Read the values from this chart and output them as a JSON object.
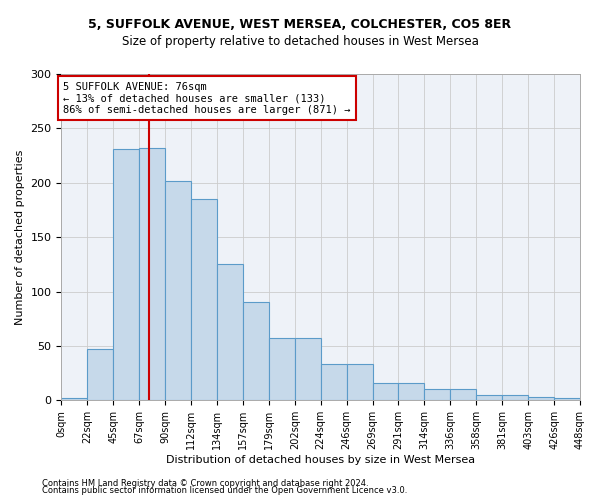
{
  "title1": "5, SUFFOLK AVENUE, WEST MERSEA, COLCHESTER, CO5 8ER",
  "title2": "Size of property relative to detached houses in West Mersea",
  "xlabel": "Distribution of detached houses by size in West Mersea",
  "ylabel": "Number of detached properties",
  "footer1": "Contains HM Land Registry data © Crown copyright and database right 2024.",
  "footer2": "Contains public sector information licensed under the Open Government Licence v3.0.",
  "annotation_line1": "5 SUFFOLK AVENUE: 76sqm",
  "annotation_line2": "← 13% of detached houses are smaller (133)",
  "annotation_line3": "86% of semi-detached houses are larger (871) →",
  "property_size": 76,
  "bin_width": 22.5,
  "bar_heights": [
    2,
    47,
    231,
    232,
    202,
    185,
    125,
    90,
    57,
    57,
    33,
    33,
    16,
    16,
    10,
    10,
    5,
    5,
    3,
    2
  ],
  "bar_facecolor": "#c6d9ea",
  "bar_edgecolor": "#5b9bc9",
  "vline_color": "#cc0000",
  "grid_color": "#cccccc",
  "background_color": "#eef2f8",
  "box_edgecolor": "#cc0000",
  "ylim": [
    0,
    300
  ],
  "xlim": [
    0,
    450
  ],
  "tick_positions": [
    0,
    22.5,
    45,
    67.5,
    90,
    112.5,
    135,
    157.5,
    180,
    202.5,
    225,
    247.5,
    270,
    292.5,
    315,
    337.5,
    360,
    382.5,
    405,
    427.5,
    450
  ],
  "tick_labels": [
    "0sqm",
    "22sqm",
    "45sqm",
    "67sqm",
    "90sqm",
    "112sqm",
    "134sqm",
    "157sqm",
    "179sqm",
    "202sqm",
    "224sqm",
    "246sqm",
    "269sqm",
    "291sqm",
    "314sqm",
    "336sqm",
    "358sqm",
    "381sqm",
    "403sqm",
    "426sqm",
    "448sqm"
  ],
  "ytick_positions": [
    0,
    50,
    100,
    150,
    200,
    250,
    300
  ],
  "ytick_labels": [
    "0",
    "50",
    "100",
    "150",
    "200",
    "250",
    "300"
  ],
  "title1_fontsize": 9,
  "title2_fontsize": 8.5,
  "xlabel_fontsize": 8,
  "ylabel_fontsize": 8,
  "xtick_fontsize": 7,
  "ytick_fontsize": 8,
  "annotation_fontsize": 7.5,
  "footer_fontsize": 6
}
